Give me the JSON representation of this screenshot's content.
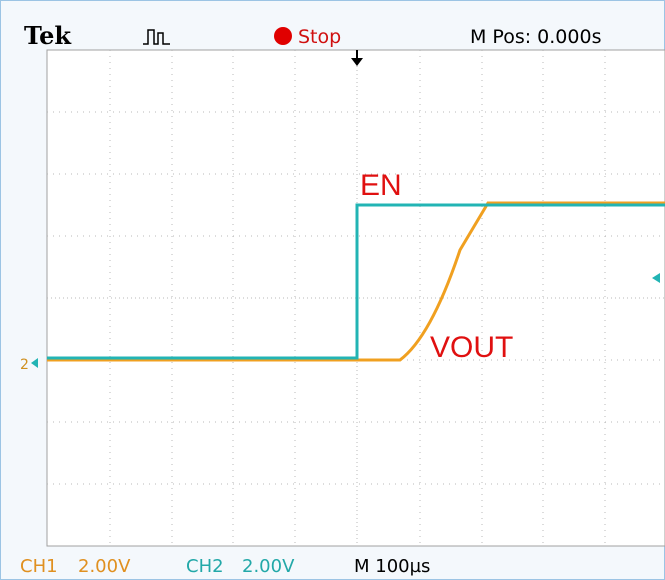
{
  "header": {
    "brand": "Tek",
    "status": "Stop",
    "position": "M Pos: 0.000s"
  },
  "labels": {
    "en": "EN",
    "vout": "VOUT",
    "ch2_marker": "2"
  },
  "footer": {
    "ch1_label": "CH1",
    "ch1_scale": "2.00V",
    "ch2_label": "CH2",
    "ch2_scale": "2.00V",
    "timebase": "M 100µs"
  }
}
